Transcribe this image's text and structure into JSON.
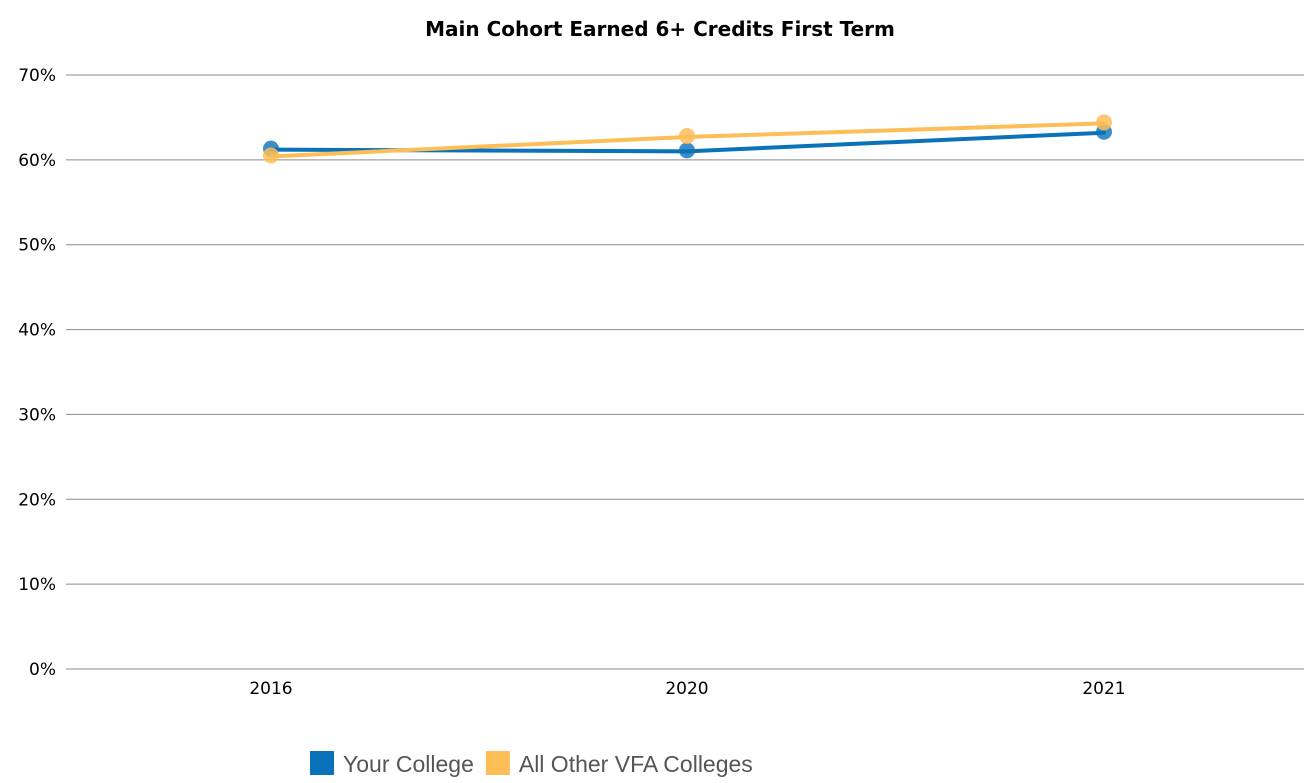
{
  "chart_data": {
    "type": "line",
    "title": "Main Cohort Earned 6+ Credits First Term",
    "xlabel": "",
    "ylabel": "",
    "categories": [
      "2016",
      "2020",
      "2021"
    ],
    "ylim": [
      0,
      70
    ],
    "yticks": [
      0,
      10,
      20,
      30,
      40,
      50,
      60,
      70
    ],
    "ytick_labels": [
      "0%",
      "10%",
      "20%",
      "30%",
      "40%",
      "50%",
      "60%",
      "70%"
    ],
    "grid": true,
    "legend_position": "bottom",
    "series": [
      {
        "name": "Your College",
        "values": [
          61.2,
          61.0,
          63.2
        ],
        "color": "#0a72b9"
      },
      {
        "name": "All Other VFA Colleges",
        "values": [
          60.4,
          62.7,
          64.3
        ],
        "color": "#fdbe58"
      }
    ]
  }
}
